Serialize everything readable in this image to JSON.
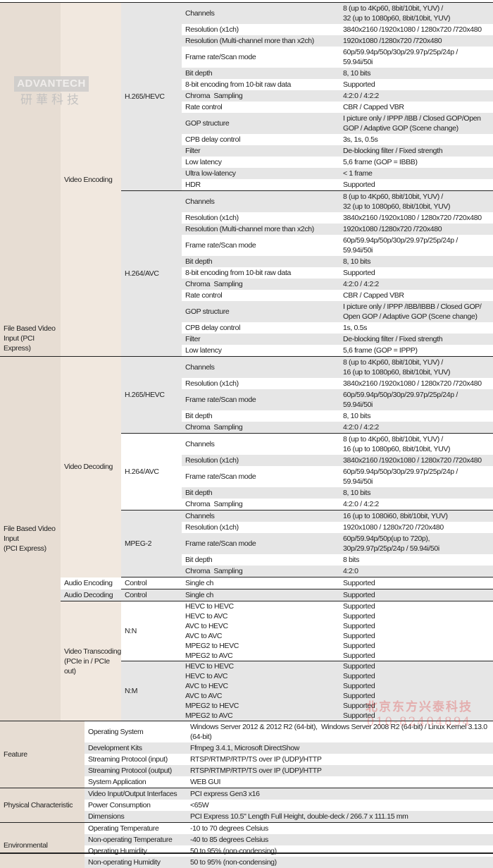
{
  "watermarks": {
    "logo_en": "ADVANTECH",
    "logo_zh": "研華科技",
    "reseller_name": "北京东方兴泰科技",
    "reseller_phone": "010-82404894"
  },
  "colors": {
    "category_bg": "#e7ddd3",
    "subcategory_bg": "#f1e8df",
    "stripe_gray": "#e6e6e6",
    "rule": "#222222"
  },
  "blocks": [
    {
      "category": "File Based Video Input (PCI Express)",
      "subcategories": [
        {
          "name": "Video Encoding",
          "groups": [
            {
              "name": "H.265/HEVC",
              "rows": [
                {
                  "label": "Channels",
                  "value": "8 (up to 4Kp60, 8bit/10bit, YUV) /\n32 (up to 1080p60, 8bit/10bit, YUV)"
                },
                {
                  "label": "Resolution (x1ch)",
                  "value": "3840x2160 /1920x1080 / 1280x720 /720x480"
                },
                {
                  "label": "Resolution (Multi-channel more than x2ch)",
                  "value": "1920x1080 /1280x720 /720x480"
                },
                {
                  "label": "Frame rate/Scan mode",
                  "value": "60p/59.94p/50p/30p/29.97p/25p/24p /\n59.94i/50i"
                },
                {
                  "label": "Bit depth",
                  "value": "8, 10 bits"
                },
                {
                  "label": "8-bit encoding from 10-bit raw data",
                  "value": "Supported"
                },
                {
                  "label": "Chroma  Sampling",
                  "value": "4:2:0 / 4:2:2"
                },
                {
                  "label": "Rate control",
                  "value": "CBR / Capped VBR"
                },
                {
                  "label": "GOP structure",
                  "value": "I picture only / IPPP /IBB / Closed GOP/Open\nGOP / Adaptive GOP (Scene change)"
                },
                {
                  "label": "CPB delay control",
                  "value": "3s, 1s, 0.5s"
                },
                {
                  "label": "Filter",
                  "value": "De-blocking filter / Fixed strength"
                },
                {
                  "label": "Low latency",
                  "value": "5,6 frame (GOP = IBBB)"
                },
                {
                  "label": "Ultra low-latency",
                  "value": "< 1 frame"
                },
                {
                  "label": "HDR",
                  "value": "Supported"
                }
              ]
            },
            {
              "name": "H.264/AVC",
              "rows": [
                {
                  "label": "Channels",
                  "value": "8 (up to 4Kp60, 8bit/10bit, YUV) /\n32 (up to 1080p60, 8bit/10bit, YUV)"
                },
                {
                  "label": "Resolution (x1ch)",
                  "value": "3840x2160 /1920x1080 / 1280x720 /720x480"
                },
                {
                  "label": "Resolution (Multi-channel more than x2ch)",
                  "value": "1920x1080 /1280x720 /720x480"
                },
                {
                  "label": "Frame rate/Scan mode",
                  "value": "60p/59.94p/50p/30p/29.97p/25p/24p /\n59.94i/50i"
                },
                {
                  "label": "Bit depth",
                  "value": "8, 10 bits"
                },
                {
                  "label": "8-bit encoding from 10-bit raw data",
                  "value": "Supported"
                },
                {
                  "label": "Chroma  Sampling",
                  "value": "4:2:0 / 4:2:2"
                },
                {
                  "label": "Rate control",
                  "value": "CBR / Capped VBR"
                },
                {
                  "label": "GOP structure",
                  "value": "I picture only / IPPP /IBB/IBBB / Closed GOP/\nOpen GOP / Adaptive GOP (Scene change)"
                },
                {
                  "label": "CPB delay control",
                  "value": "1s, 0.5s"
                },
                {
                  "label": "Filter",
                  "value": "De-blocking filter / Fixed strength"
                },
                {
                  "label": "Low latency",
                  "value": "5,6 frame (GOP = IPPP)"
                }
              ]
            }
          ]
        }
      ]
    },
    {
      "category": "File Based Video Input\n(PCI Express)",
      "subcategories": [
        {
          "name": "Video Decoding",
          "groups": [
            {
              "name": "H.265/HEVC",
              "rows": [
                {
                  "label": "Channels",
                  "value": "8 (up to 4Kp60, 8bit/10bit, YUV) /\n16 (up to 1080p60, 8bit/10bit, YUV)"
                },
                {
                  "label": "Resolution (x1ch)",
                  "value": "3840x2160 /1920x1080 / 1280x720 /720x480"
                },
                {
                  "label": "Frame rate/Scan mode",
                  "value": "60p/59.94p/50p/30p/29.97p/25p/24p /\n59.94i/50i"
                },
                {
                  "label": "Bit depth",
                  "value": "8, 10 bits"
                },
                {
                  "label": "Chroma  Sampling",
                  "value": "4:2:0 / 4:2:2"
                }
              ]
            },
            {
              "name": "H.264/AVC",
              "rows": [
                {
                  "label": "Channels",
                  "value": "8 (up to 4Kp60, 8bit/10bit, YUV) /\n16 (up to 1080p60, 8bit/10bit, YUV)"
                },
                {
                  "label": "Resolution (x1ch)",
                  "value": "3840x2160 /1920x1080 / 1280x720 /720x480"
                },
                {
                  "label": "Frame rate/Scan mode",
                  "value": "60p/59.94p/50p/30p/29.97p/25p/24p /\n59.94i/50i"
                },
                {
                  "label": "Bit depth",
                  "value": "8, 10 bits"
                },
                {
                  "label": "Chroma  Sampling",
                  "value": "4:2:0 / 4:2:2"
                }
              ]
            },
            {
              "name": "MPEG-2",
              "rows": [
                {
                  "label": "Channels",
                  "value": "16 (up to 1080i60, 8bit/10bit, YUV)"
                },
                {
                  "label": "Resolution (x1ch)",
                  "value": "1920x1080 / 1280x720 /720x480"
                },
                {
                  "label": "Frame rate/Scan mode",
                  "value": "60p/59.94p/50p(up to 720p),\n30p/29.97p/25p/24p / 59.94i/50i"
                },
                {
                  "label": "Bit depth",
                  "value": "8 bits"
                },
                {
                  "label": "Chroma  Sampling",
                  "value": "4:2:0"
                }
              ]
            }
          ]
        },
        {
          "name": "Audio Encoding",
          "groups": [
            {
              "name": "Control",
              "rows": [
                {
                  "label": "Single ch",
                  "value": "Supported"
                }
              ]
            }
          ]
        },
        {
          "name": "Audio Decoding",
          "groups": [
            {
              "name": "Control",
              "rows": [
                {
                  "label": "Single ch",
                  "value": "Supported"
                }
              ]
            }
          ]
        },
        {
          "name": "Video Transcoding (PCIe in / PCIe out)",
          "groups": [
            {
              "name": "N:N",
              "conversions": [
                {
                  "label": "HEVC to HEVC",
                  "value": "Supported"
                },
                {
                  "label": "HEVC to AVC",
                  "value": "Supported"
                },
                {
                  "label": "AVC to HEVC",
                  "value": "Supported"
                },
                {
                  "label": "AVC to AVC",
                  "value": "Supported"
                },
                {
                  "label": "MPEG2 to HEVC",
                  "value": "Supported"
                },
                {
                  "label": "MPEG2 to AVC",
                  "value": "Supported"
                }
              ]
            },
            {
              "name": "N:M",
              "conversions": [
                {
                  "label": "HEVC to HEVC",
                  "value": "Supported"
                },
                {
                  "label": "HEVC to AVC",
                  "value": "Supported"
                },
                {
                  "label": "AVC to HEVC",
                  "value": "Supported"
                },
                {
                  "label": "AVC to AVC",
                  "value": "Supported"
                },
                {
                  "label": "MPEG2 to HEVC",
                  "value": "Supported"
                },
                {
                  "label": "MPEG2 to AVC",
                  "value": "Supported"
                }
              ]
            }
          ]
        }
      ]
    }
  ],
  "general": [
    {
      "category": "Feature",
      "rows": [
        {
          "label": "Operating System",
          "value": "Windows Server 2012 & 2012 R2 (64-bit),  Windows Server 2008 R2 (64-bit) / Linux Kernel 3.13.0\n(64-bit)"
        },
        {
          "label": "Development Kits",
          "value": "Ffmpeg 3.4.1, Microsoft DirectShow"
        },
        {
          "label": "Streaming Protocol (input)",
          "value": "RTSP/RTMP/RTP/TS over IP (UDP)/HTTP"
        },
        {
          "label": "Streaming Protocol (output)",
          "value": "RTSP/RTMP/RTP/TS over IP (UDP)/HTTP"
        },
        {
          "label": "System Application",
          "value": "WEB GUI"
        }
      ]
    },
    {
      "category": "Physical Characteristic",
      "rows": [
        {
          "label": "Video Input/Output Interfaces",
          "value": "PCI express Gen3 x16"
        },
        {
          "label": "Power Consumption",
          "value": "<65W"
        },
        {
          "label": "Dimensions",
          "value": "PCI Express 10.5\" Length Full Height, double-deck / 266.7 x 111.15 mm"
        }
      ]
    },
    {
      "category": "Environmental",
      "rows": [
        {
          "label": "Operating Temperature",
          "value": "-10 to 70 degrees Celsius"
        },
        {
          "label": "Non-operating Temperature",
          "value": "-40 to 85 degrees Celsius"
        },
        {
          "label": "Operating Humidity",
          "value": "50 to 95% (non-condensing)"
        },
        {
          "label": "Non-operating Humidity",
          "value": "50 to 95% (non-condensing)"
        }
      ]
    }
  ]
}
